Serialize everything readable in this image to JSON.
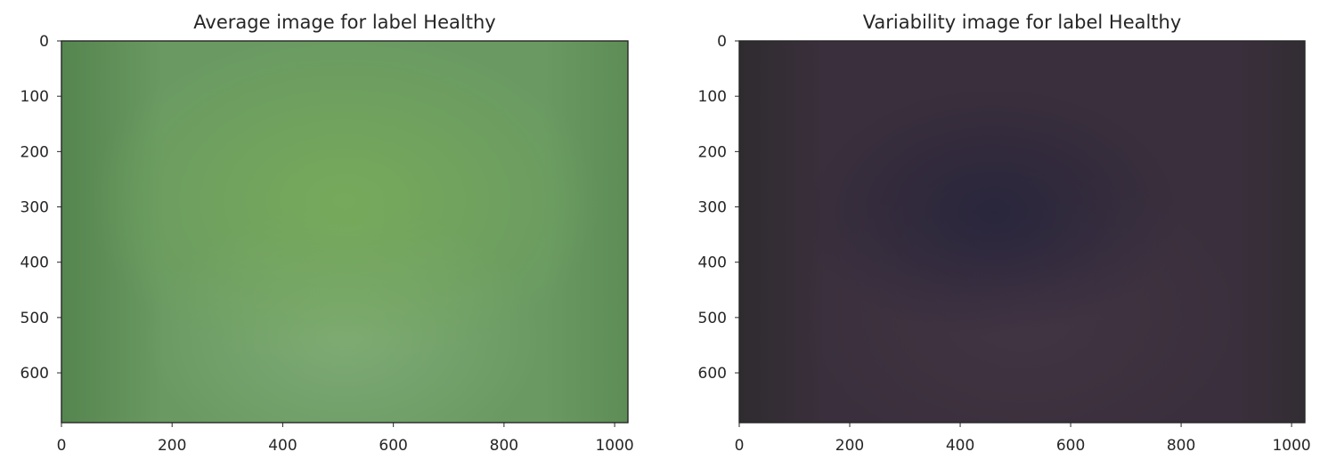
{
  "chart_data": [
    {
      "type": "heatmap",
      "title": "Average image for label Healthy",
      "xlabel": "",
      "ylabel": "",
      "xlim": [
        0,
        1024
      ],
      "ylim": [
        690,
        0
      ],
      "xticks": [
        0,
        200,
        400,
        600,
        800,
        1000
      ],
      "yticks": [
        0,
        100,
        200,
        300,
        400,
        500,
        600
      ],
      "colors": {
        "base": "#6a9a62",
        "center": "#78ab5a",
        "edge": "#4f7f48",
        "light": "#8fb886"
      }
    },
    {
      "type": "heatmap",
      "title": "Variability image for label Healthy",
      "xlabel": "",
      "ylabel": "",
      "xlim": [
        0,
        1024
      ],
      "ylim": [
        690,
        0
      ],
      "xticks": [
        0,
        200,
        400,
        600,
        800,
        1000
      ],
      "yticks": [
        0,
        100,
        200,
        300,
        400,
        500,
        600
      ],
      "colors": {
        "base": "#3a2f3c",
        "center": "#28253c",
        "edge": "#2a2a2a",
        "light": "#4a3a4a"
      }
    }
  ]
}
